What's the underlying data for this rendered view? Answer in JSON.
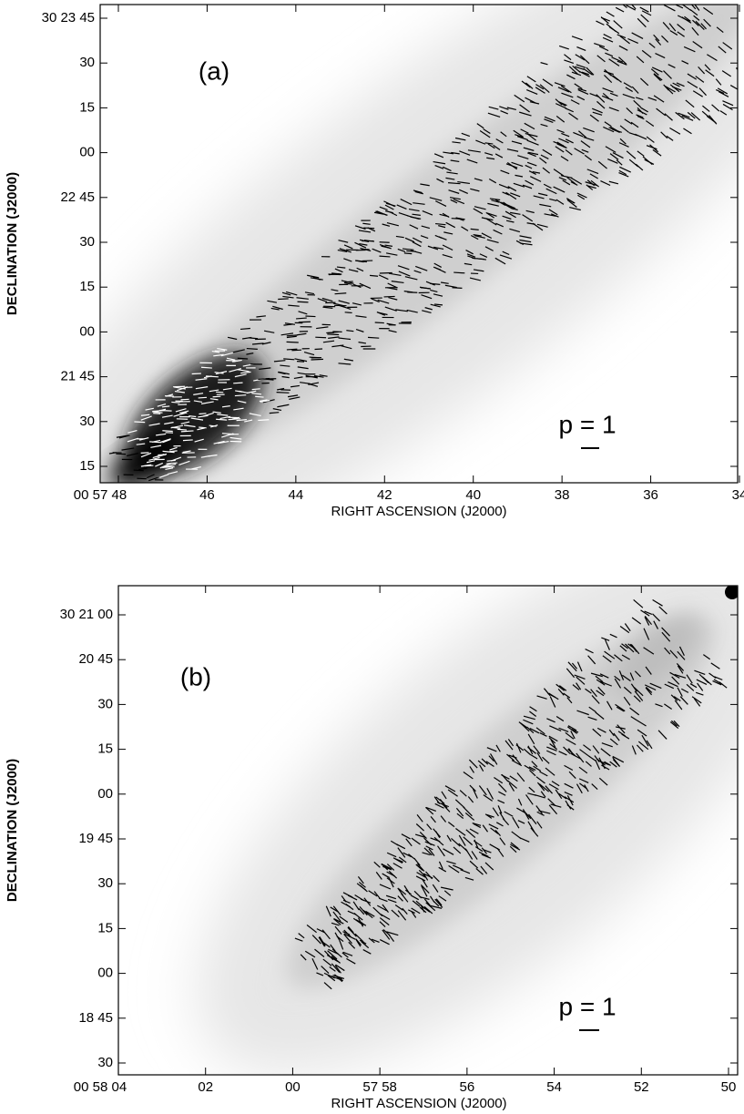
{
  "panels": [
    {
      "label": "(a)",
      "y_axis_label": "DECLINATION (J2000)",
      "x_axis_label": "RIGHT ASCENSION (J2000)",
      "y_tick_labels": [
        "30 23 45",
        "30",
        "15",
        "00",
        "22 45",
        "30",
        "15",
        "00",
        "21 45",
        "30",
        "15"
      ],
      "x_tick_labels": [
        "00 57 48",
        "46",
        "44",
        "42",
        "40",
        "38",
        "36",
        "34"
      ],
      "scale_label": "p = 1"
    },
    {
      "label": "(b)",
      "y_axis_label": "DECLINATION (J2000)",
      "x_axis_label": "RIGHT ASCENSION (J2000)",
      "y_tick_labels": [
        "30 21 00",
        "20 45",
        "30",
        "15",
        "00",
        "19 45",
        "30",
        "15",
        "00",
        "18 45",
        "30"
      ],
      "x_tick_labels": [
        "00 58 04",
        "02",
        "00",
        "57 58",
        "56",
        "54",
        "52",
        "50"
      ],
      "scale_label": "p = 1"
    }
  ]
}
